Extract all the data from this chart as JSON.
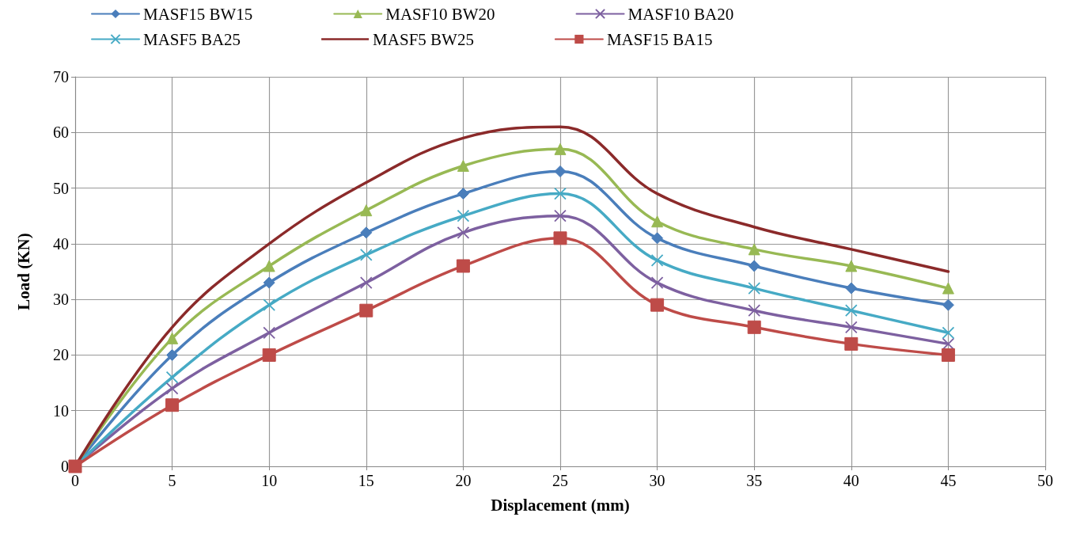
{
  "chart_data": {
    "type": "line",
    "xlabel": "Displacement (mm)",
    "ylabel": "Load (KN)",
    "x": [
      0,
      5,
      10,
      15,
      20,
      25,
      30,
      35,
      40,
      45
    ],
    "series": [
      {
        "name": "MASF15 BW15",
        "color": "#4a7ebb",
        "marker": "diamond",
        "values": [
          0,
          20,
          33,
          42,
          49,
          53,
          41,
          36,
          32,
          29
        ]
      },
      {
        "name": "MASF10 BW20",
        "color": "#98b954",
        "marker": "triangle",
        "values": [
          0,
          23,
          36,
          46,
          54,
          57,
          44,
          39,
          36,
          32
        ]
      },
      {
        "name": "MASF10 BA20",
        "color": "#7d60a0",
        "marker": "cross",
        "values": [
          0,
          14,
          24,
          33,
          42,
          45,
          33,
          28,
          25,
          22
        ]
      },
      {
        "name": "MASF5 BA25",
        "color": "#46aac5",
        "marker": "cross",
        "values": [
          0,
          16,
          29,
          38,
          45,
          49,
          37,
          32,
          28,
          24
        ]
      },
      {
        "name": "MASF5 BW25",
        "color": "#8b2a2a",
        "marker": "none",
        "values": [
          0,
          25,
          40,
          51,
          59,
          61,
          49,
          43,
          39,
          35
        ]
      },
      {
        "name": "MASF15 BA15",
        "color": "#be4b48",
        "marker": "square",
        "values": [
          0,
          11,
          20,
          28,
          36,
          41,
          29,
          25,
          22,
          20
        ]
      }
    ],
    "xlim": [
      0,
      50
    ],
    "xticks": [
      0,
      5,
      10,
      15,
      20,
      25,
      30,
      35,
      40,
      45,
      50
    ],
    "ylim": [
      0,
      70
    ],
    "yticks": [
      0,
      10,
      20,
      30,
      40,
      50,
      60,
      70
    ],
    "grid": true,
    "legend": "top",
    "line_style": "solid"
  }
}
